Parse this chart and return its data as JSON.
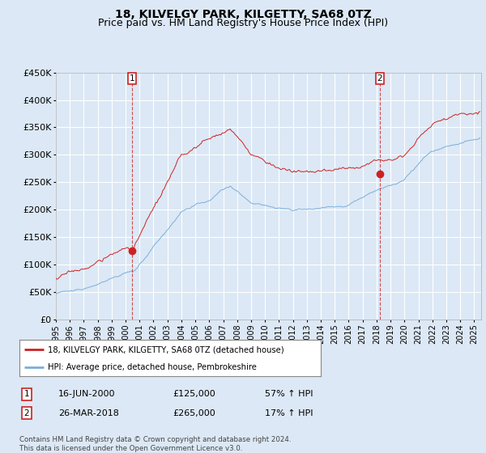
{
  "title": "18, KILVELGY PARK, KILGETTY, SA68 0TZ",
  "subtitle": "Price paid vs. HM Land Registry's House Price Index (HPI)",
  "ylim": [
    0,
    450000
  ],
  "yticks": [
    0,
    50000,
    100000,
    150000,
    200000,
    250000,
    300000,
    350000,
    400000,
    450000
  ],
  "ytick_labels": [
    "£0",
    "£50K",
    "£100K",
    "£150K",
    "£200K",
    "£250K",
    "£300K",
    "£350K",
    "£400K",
    "£450K"
  ],
  "background_color": "#dce8f5",
  "plot_bg_color": "#dce8f5",
  "sale1_date_num": 2000.46,
  "sale1_price": 125000,
  "sale1_label": "16-JUN-2000",
  "sale1_pct": "57% ↑ HPI",
  "sale2_date_num": 2018.24,
  "sale2_price": 265000,
  "sale2_label": "26-MAR-2018",
  "sale2_pct": "17% ↑ HPI",
  "legend_line1": "18, KILVELGY PARK, KILGETTY, SA68 0TZ (detached house)",
  "legend_line2": "HPI: Average price, detached house, Pembrokeshire",
  "footer": "Contains HM Land Registry data © Crown copyright and database right 2024.\nThis data is licensed under the Open Government Licence v3.0.",
  "red_color": "#cc2222",
  "blue_color": "#7aaedc",
  "title_fontsize": 10,
  "subtitle_fontsize": 9,
  "axis_fontsize": 8,
  "xstart": 1995,
  "xend": 2025
}
